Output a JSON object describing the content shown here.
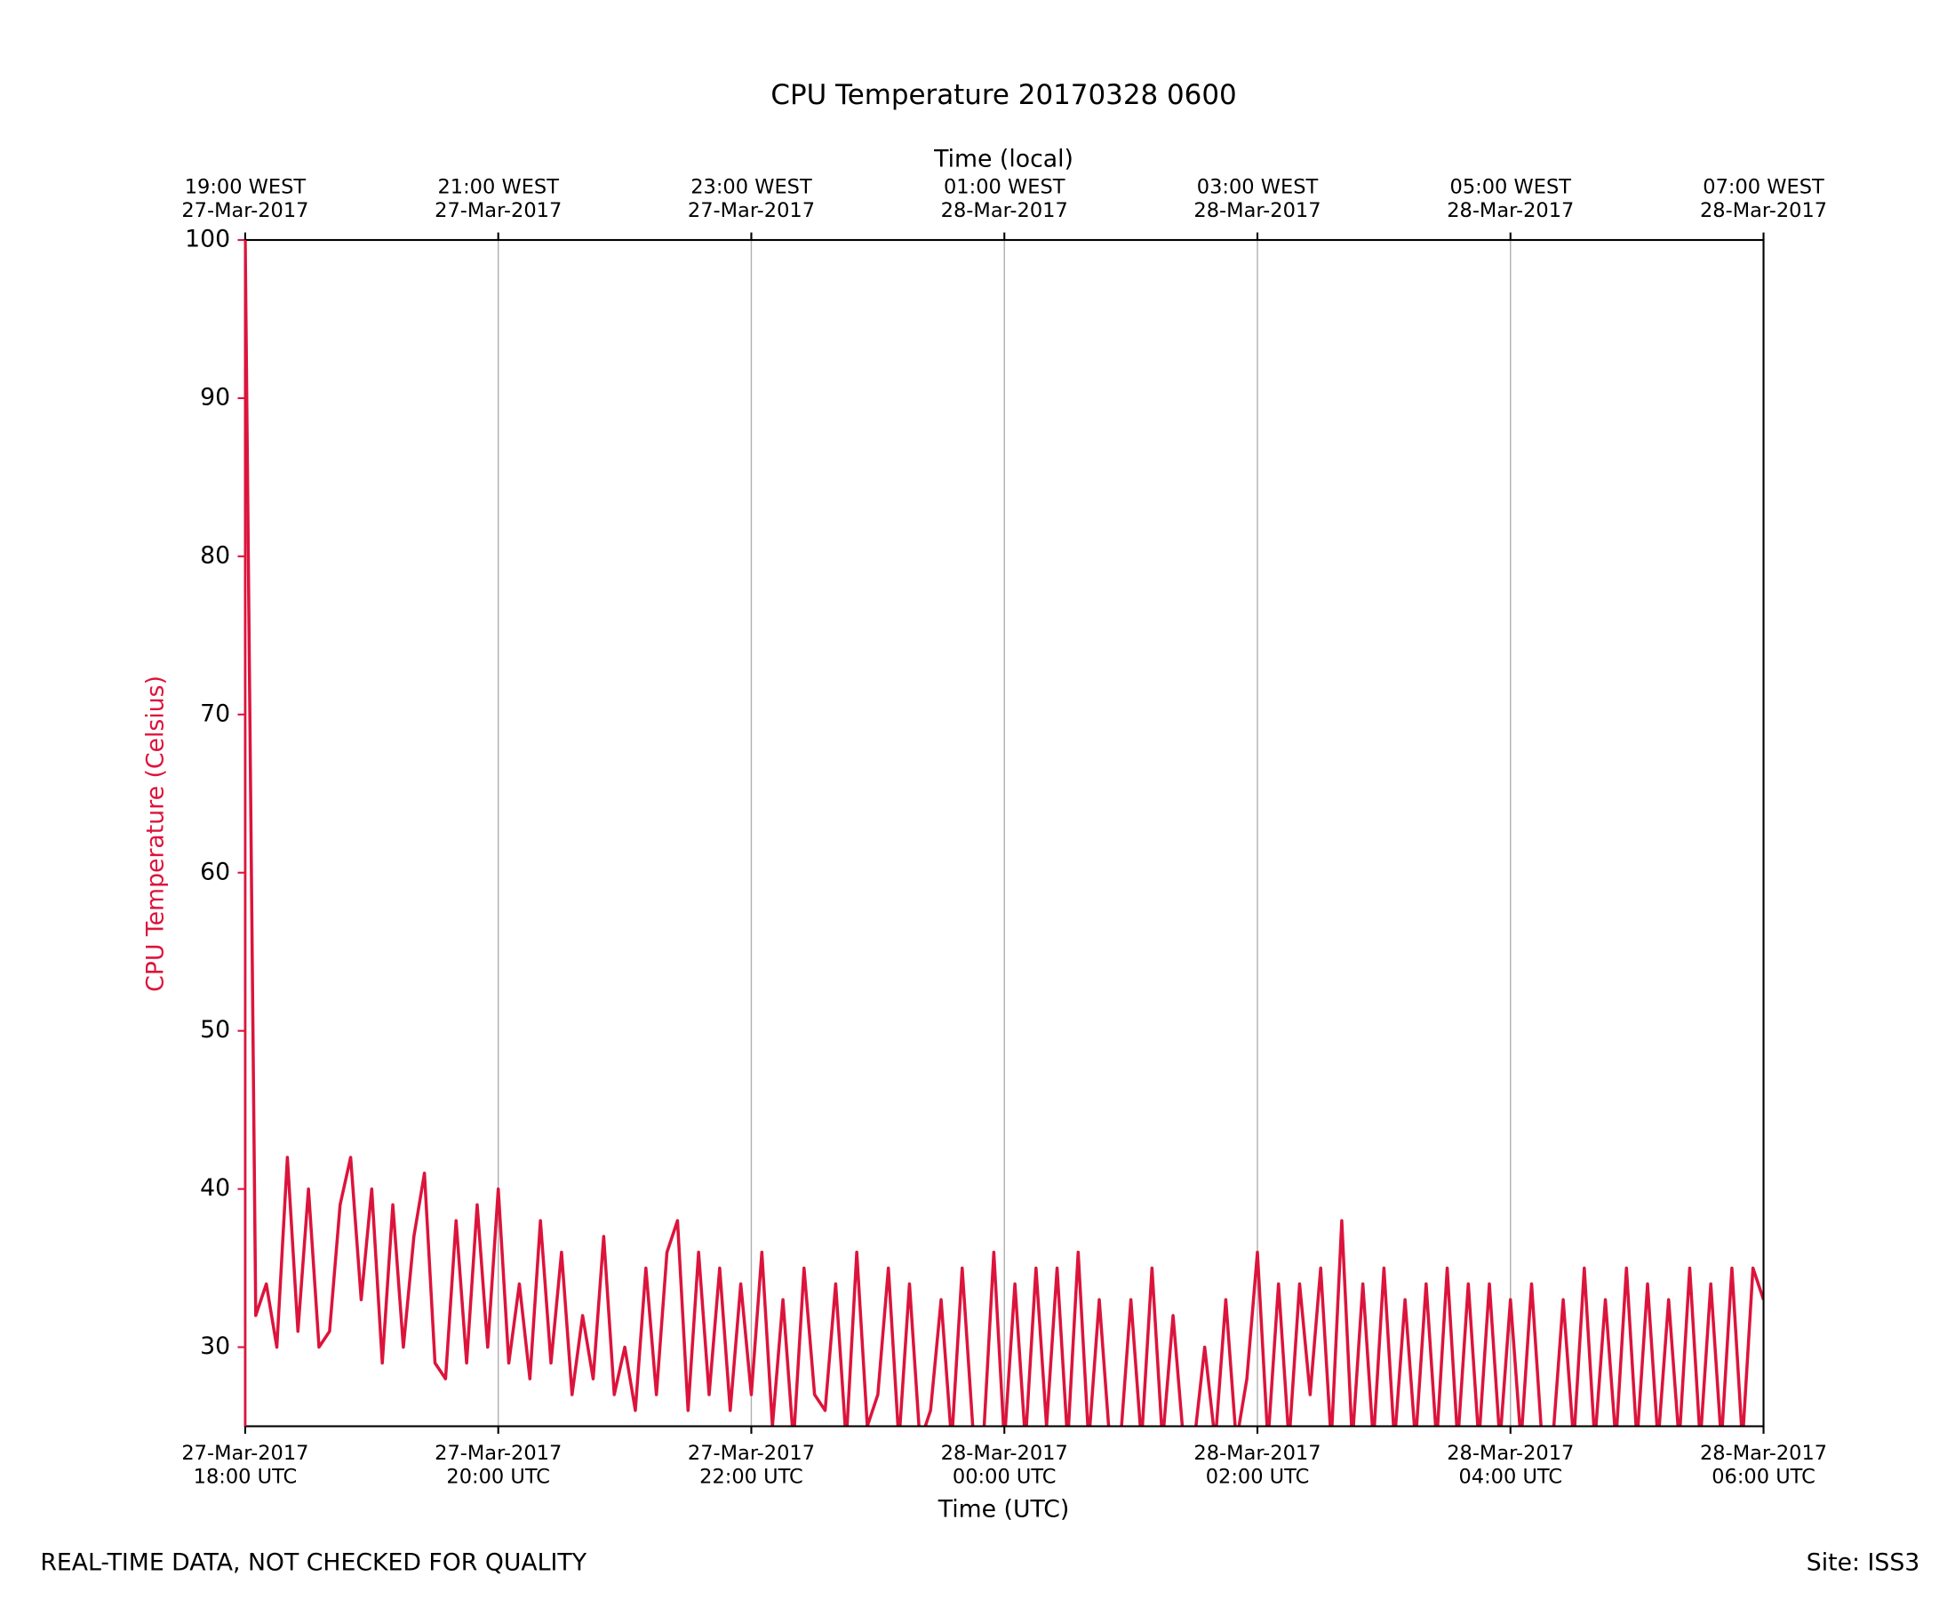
{
  "chart_data": {
    "type": "line",
    "title": "CPU Temperature 20170328 0600",
    "x_label": "Time (UTC)",
    "x2_label": "Time (local)",
    "y_label": "CPU Temperature (Celsius)",
    "footer_left": "REAL-TIME DATA, NOT CHECKED FOR QUALITY",
    "footer_right": "Site: ISS3",
    "grid": true,
    "xlim": [
      "2017-03-27T18:00",
      "2017-03-28T06:00"
    ],
    "ylim": [
      25,
      100
    ],
    "yticks": [
      30,
      40,
      50,
      60,
      70,
      80,
      90,
      100
    ],
    "xticks": [
      {
        "value": "2017-03-27T18:00",
        "label": [
          "27-Mar-2017",
          "18:00 UTC"
        ]
      },
      {
        "value": "2017-03-27T20:00",
        "label": [
          "27-Mar-2017",
          "20:00 UTC"
        ]
      },
      {
        "value": "2017-03-27T22:00",
        "label": [
          "27-Mar-2017",
          "22:00 UTC"
        ]
      },
      {
        "value": "2017-03-28T00:00",
        "label": [
          "28-Mar-2017",
          "00:00 UTC"
        ]
      },
      {
        "value": "2017-03-28T02:00",
        "label": [
          "28-Mar-2017",
          "02:00 UTC"
        ]
      },
      {
        "value": "2017-03-28T04:00",
        "label": [
          "28-Mar-2017",
          "04:00 UTC"
        ]
      },
      {
        "value": "2017-03-28T06:00",
        "label": [
          "28-Mar-2017",
          "06:00 UTC"
        ]
      }
    ],
    "x2ticks": [
      {
        "value": "2017-03-27T18:00",
        "label": [
          "19:00 WEST",
          "27-Mar-2017"
        ]
      },
      {
        "value": "2017-03-27T20:00",
        "label": [
          "21:00 WEST",
          "27-Mar-2017"
        ]
      },
      {
        "value": "2017-03-27T22:00",
        "label": [
          "23:00 WEST",
          "27-Mar-2017"
        ]
      },
      {
        "value": "2017-03-28T00:00",
        "label": [
          "01:00 WEST",
          "28-Mar-2017"
        ]
      },
      {
        "value": "2017-03-28T02:00",
        "label": [
          "03:00 WEST",
          "28-Mar-2017"
        ]
      },
      {
        "value": "2017-03-28T04:00",
        "label": [
          "05:00 WEST",
          "28-Mar-2017"
        ]
      },
      {
        "value": "2017-03-28T06:00",
        "label": [
          "07:00 WEST",
          "28-Mar-2017"
        ]
      }
    ],
    "x": [
      "2017-03-27T18:00",
      "2017-03-27T18:05",
      "2017-03-27T18:10",
      "2017-03-27T18:15",
      "2017-03-27T18:20",
      "2017-03-27T18:25",
      "2017-03-27T18:30",
      "2017-03-27T18:35",
      "2017-03-27T18:40",
      "2017-03-27T18:45",
      "2017-03-27T18:50",
      "2017-03-27T18:55",
      "2017-03-27T19:00",
      "2017-03-27T19:05",
      "2017-03-27T19:10",
      "2017-03-27T19:15",
      "2017-03-27T19:20",
      "2017-03-27T19:25",
      "2017-03-27T19:30",
      "2017-03-27T19:35",
      "2017-03-27T19:40",
      "2017-03-27T19:45",
      "2017-03-27T19:50",
      "2017-03-27T19:55",
      "2017-03-27T20:00",
      "2017-03-27T20:05",
      "2017-03-27T20:10",
      "2017-03-27T20:15",
      "2017-03-27T20:20",
      "2017-03-27T20:25",
      "2017-03-27T20:30",
      "2017-03-27T20:35",
      "2017-03-27T20:40",
      "2017-03-27T20:45",
      "2017-03-27T20:50",
      "2017-03-27T20:55",
      "2017-03-27T21:00",
      "2017-03-27T21:05",
      "2017-03-27T21:10",
      "2017-03-27T21:15",
      "2017-03-27T21:20",
      "2017-03-27T21:25",
      "2017-03-27T21:30",
      "2017-03-27T21:35",
      "2017-03-27T21:40",
      "2017-03-27T21:45",
      "2017-03-27T21:50",
      "2017-03-27T21:55",
      "2017-03-27T22:00",
      "2017-03-27T22:05",
      "2017-03-27T22:10",
      "2017-03-27T22:15",
      "2017-03-27T22:20",
      "2017-03-27T22:25",
      "2017-03-27T22:30",
      "2017-03-27T22:35",
      "2017-03-27T22:40",
      "2017-03-27T22:45",
      "2017-03-27T22:50",
      "2017-03-27T22:55",
      "2017-03-27T23:00",
      "2017-03-27T23:05",
      "2017-03-27T23:10",
      "2017-03-27T23:15",
      "2017-03-27T23:20",
      "2017-03-27T23:25",
      "2017-03-27T23:30",
      "2017-03-27T23:35",
      "2017-03-27T23:40",
      "2017-03-27T23:45",
      "2017-03-27T23:50",
      "2017-03-27T23:55",
      "2017-03-28T00:00",
      "2017-03-28T00:05",
      "2017-03-28T00:10",
      "2017-03-28T00:15",
      "2017-03-28T00:20",
      "2017-03-28T00:25",
      "2017-03-28T00:30",
      "2017-03-28T00:35",
      "2017-03-28T00:40",
      "2017-03-28T00:45",
      "2017-03-28T00:50",
      "2017-03-28T00:55",
      "2017-03-28T01:00",
      "2017-03-28T01:05",
      "2017-03-28T01:10",
      "2017-03-28T01:15",
      "2017-03-28T01:20",
      "2017-03-28T01:25",
      "2017-03-28T01:30",
      "2017-03-28T01:35",
      "2017-03-28T01:40",
      "2017-03-28T01:45",
      "2017-03-28T01:50",
      "2017-03-28T01:55",
      "2017-03-28T02:00",
      "2017-03-28T02:05",
      "2017-03-28T02:10",
      "2017-03-28T02:15",
      "2017-03-28T02:20",
      "2017-03-28T02:25",
      "2017-03-28T02:30",
      "2017-03-28T02:35",
      "2017-03-28T02:40",
      "2017-03-28T02:45",
      "2017-03-28T02:50",
      "2017-03-28T02:55",
      "2017-03-28T03:00",
      "2017-03-28T03:05",
      "2017-03-28T03:10",
      "2017-03-28T03:15",
      "2017-03-28T03:20",
      "2017-03-28T03:25",
      "2017-03-28T03:30",
      "2017-03-28T03:35",
      "2017-03-28T03:40",
      "2017-03-28T03:45",
      "2017-03-28T03:50",
      "2017-03-28T03:55",
      "2017-03-28T04:00",
      "2017-03-28T04:05",
      "2017-03-28T04:10",
      "2017-03-28T04:15",
      "2017-03-28T04:20",
      "2017-03-28T04:25",
      "2017-03-28T04:30",
      "2017-03-28T04:35",
      "2017-03-28T04:40",
      "2017-03-28T04:45",
      "2017-03-28T04:50",
      "2017-03-28T04:55",
      "2017-03-28T05:00",
      "2017-03-28T05:05",
      "2017-03-28T05:10",
      "2017-03-28T05:15",
      "2017-03-28T05:20",
      "2017-03-28T05:25",
      "2017-03-28T05:30",
      "2017-03-28T05:35",
      "2017-03-28T05:40",
      "2017-03-28T05:45",
      "2017-03-28T05:50",
      "2017-03-28T05:55",
      "2017-03-28T06:00"
    ],
    "series": [
      {
        "name": "CPU Temperature",
        "color": "#dc143c",
        "values": [
          100,
          32,
          34,
          30,
          42,
          31,
          40,
          30,
          31,
          39,
          42,
          33,
          40,
          29,
          39,
          30,
          37,
          41,
          29,
          28,
          38,
          29,
          39,
          30,
          40,
          29,
          34,
          28,
          38,
          29,
          36,
          27,
          32,
          28,
          37,
          27,
          30,
          26,
          35,
          27,
          36,
          38,
          26,
          36,
          27,
          35,
          26,
          34,
          27,
          36,
          25,
          33,
          24,
          35,
          27,
          26,
          34,
          24,
          36,
          25,
          27,
          35,
          24,
          34,
          24,
          26,
          33,
          24,
          35,
          25,
          24,
          36,
          24,
          34,
          24,
          35,
          25,
          35,
          24,
          36,
          24,
          33,
          24,
          24,
          33,
          24,
          35,
          24,
          32,
          24,
          24,
          30,
          24,
          33,
          24,
          28,
          36,
          24,
          34,
          24,
          34,
          27,
          35,
          24,
          38,
          24,
          34,
          24,
          35,
          24,
          33,
          24,
          34,
          24,
          35,
          24,
          34,
          24,
          34,
          24,
          33,
          24,
          34,
          24,
          24,
          33,
          24,
          35,
          24,
          33,
          24,
          35,
          24,
          34,
          24,
          33,
          24,
          35,
          24,
          34,
          24,
          35,
          24,
          35,
          33
        ]
      }
    ]
  }
}
